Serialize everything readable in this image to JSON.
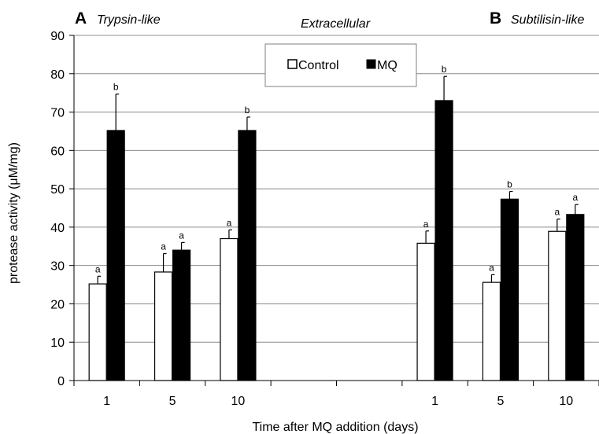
{
  "chart_data": {
    "type": "bar",
    "title": "Extracellular",
    "xlabel": "Time after MQ addition (days)",
    "ylabel": "protease activity (μM/mg)",
    "ylim": [
      0,
      90
    ],
    "yticks": [
      0,
      10,
      20,
      30,
      40,
      50,
      60,
      70,
      80,
      90
    ],
    "grid": "horizontal",
    "legend_position": "top-center",
    "series": [
      {
        "name": "Control",
        "color": "#ffffff"
      },
      {
        "name": "MQ",
        "color": "#000000"
      }
    ],
    "panels": [
      {
        "letter": "A",
        "name": "Trypsin-like",
        "categories": [
          "1",
          "5",
          "10"
        ],
        "values": {
          "Control": [
            25.2,
            28.3,
            37.0
          ],
          "MQ": [
            65.2,
            34.0,
            65.2
          ]
        },
        "errors": {
          "Control": [
            2.0,
            4.8,
            2.3
          ],
          "MQ": [
            9.5,
            2.0,
            3.5
          ]
        },
        "labels": {
          "Control": [
            "a",
            "a",
            "a"
          ],
          "MQ": [
            "b",
            "a",
            "b"
          ]
        }
      },
      {
        "letter": "B",
        "name": "Subtilisin-like",
        "categories": [
          "1",
          "5",
          "10"
        ],
        "values": {
          "Control": [
            35.8,
            25.6,
            38.9
          ],
          "MQ": [
            73.0,
            47.3,
            43.3
          ]
        },
        "errors": {
          "Control": [
            3.2,
            2.0,
            3.2
          ],
          "MQ": [
            6.3,
            2.0,
            2.6
          ]
        },
        "labels": {
          "Control": [
            "a",
            "a",
            "a"
          ],
          "MQ": [
            "b",
            "b",
            "a"
          ]
        }
      }
    ]
  }
}
